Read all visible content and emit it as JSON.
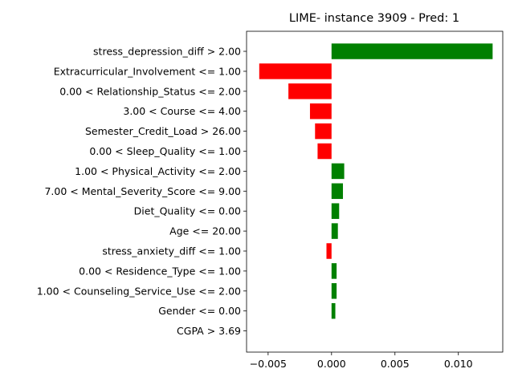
{
  "chart_data": {
    "type": "bar",
    "orientation": "horizontal",
    "title": "LIME- instance 3909 - Pred: 1",
    "xlabel": "",
    "ylabel": "",
    "xlim": [
      -0.0067,
      0.0135
    ],
    "xticks": [
      -0.005,
      0.0,
      0.005,
      0.01
    ],
    "xtick_labels": [
      "−0.005",
      "0.000",
      "0.005",
      "0.010"
    ],
    "grid": false,
    "colors": {
      "positive": "#008000",
      "negative": "#ff0000"
    },
    "categories": [
      "stress_depression_diff > 2.00",
      "Extracurricular_Involvement <= 1.00",
      "0.00 < Relationship_Status <= 2.00",
      "3.00 < Course <= 4.00",
      "Semester_Credit_Load > 26.00",
      "0.00 < Sleep_Quality <= 1.00",
      "1.00 < Physical_Activity <= 2.00",
      "7.00 < Mental_Severity_Score <= 9.00",
      "Diet_Quality <= 0.00",
      "Age <= 20.00",
      "stress_anxiety_diff <= 1.00",
      "0.00 < Residence_Type <= 1.00",
      "1.00 < Counseling_Service_Use <= 2.00",
      "Gender <= 0.00",
      "CGPA > 3.69"
    ],
    "values": [
      0.0127,
      -0.0057,
      -0.0034,
      -0.0017,
      -0.0013,
      -0.0011,
      0.001,
      0.0009,
      0.0006,
      0.0005,
      -0.0004,
      0.0004,
      0.0004,
      0.0003,
      0.0
    ]
  }
}
